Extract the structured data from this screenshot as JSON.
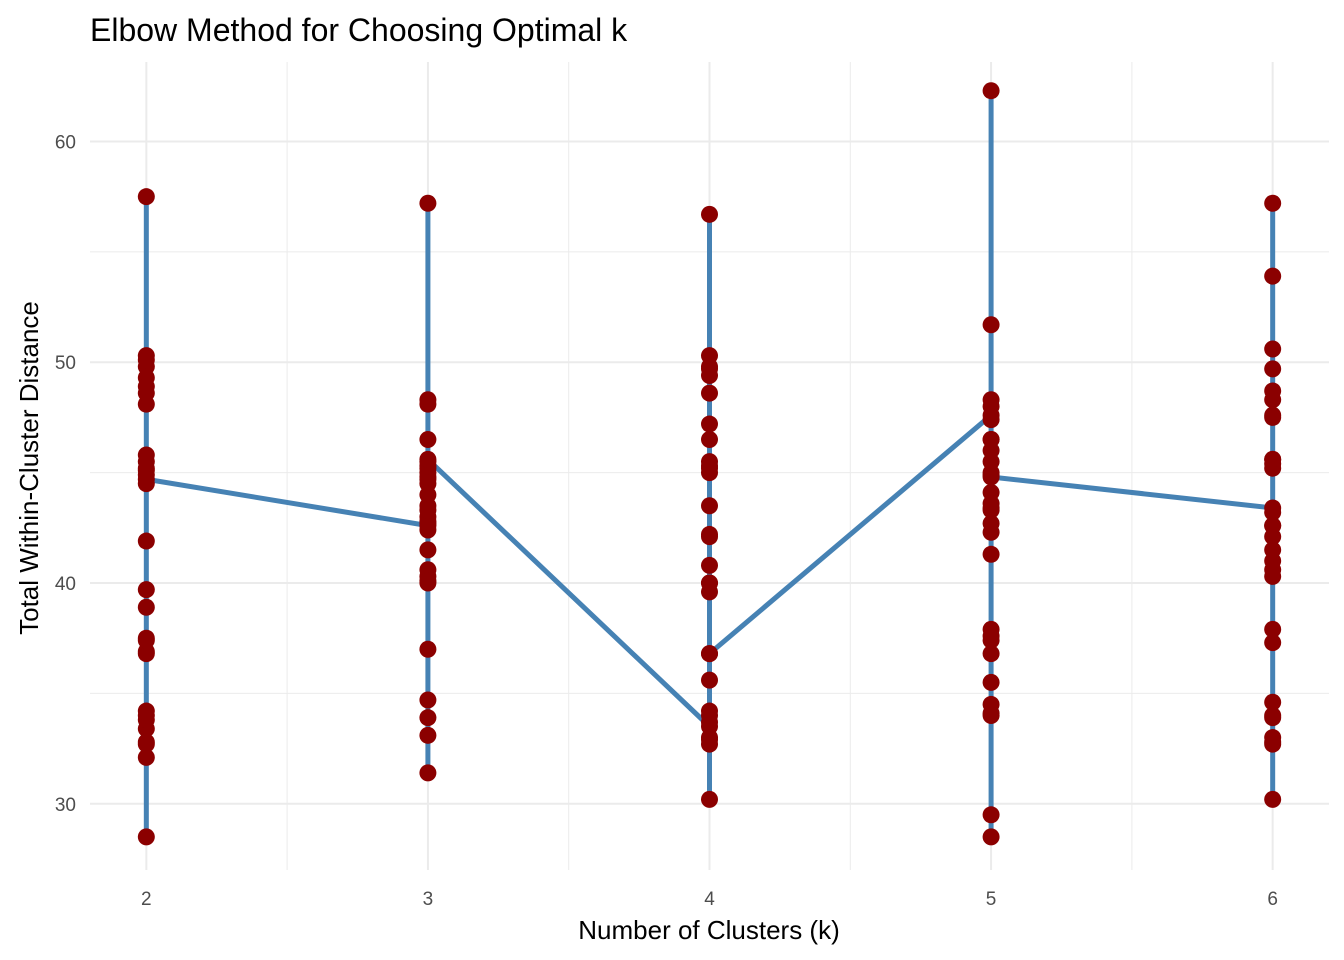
{
  "chart_data": {
    "type": "line",
    "title": "Elbow Method for Choosing Optimal k",
    "xlabel": "Number of Clusters (k)",
    "ylabel": "Total Within-Cluster Distance",
    "x_ticks": [
      "2",
      "3",
      "4",
      "5",
      "6"
    ],
    "y_ticks": [
      "30",
      "40",
      "50",
      "60"
    ],
    "xlim": [
      1.8,
      6.2
    ],
    "ylim": [
      27,
      63.6
    ],
    "grid": true,
    "legend": "none",
    "line_color": "#4682B4",
    "point_color": "#8B0000",
    "x": [
      2,
      2,
      2,
      2,
      2,
      2,
      2,
      2,
      2,
      2,
      2,
      2,
      2,
      2,
      2,
      2,
      2,
      2,
      2,
      2,
      2,
      2,
      2,
      2,
      2,
      2,
      2,
      2,
      2,
      2,
      3,
      3,
      3,
      3,
      3,
      3,
      3,
      3,
      3,
      3,
      3,
      3,
      3,
      3,
      3,
      3,
      3,
      3,
      3,
      3,
      3,
      3,
      3,
      3,
      3,
      3,
      3,
      3,
      3,
      3,
      4,
      4,
      4,
      4,
      4,
      4,
      4,
      4,
      4,
      4,
      4,
      4,
      4,
      4,
      4,
      4,
      4,
      4,
      4,
      4,
      4,
      4,
      4,
      4,
      4,
      4,
      4,
      4,
      4,
      4,
      5,
      5,
      5,
      5,
      5,
      5,
      5,
      5,
      5,
      5,
      5,
      5,
      5,
      5,
      5,
      5,
      5,
      5,
      5,
      5,
      5,
      5,
      5,
      5,
      5,
      5,
      5,
      5,
      5,
      5,
      6,
      6,
      6,
      6,
      6,
      6,
      6,
      6,
      6,
      6,
      6,
      6,
      6,
      6,
      6,
      6,
      6,
      6,
      6,
      6,
      6,
      6,
      6,
      6,
      6,
      6,
      6,
      6,
      6,
      6
    ],
    "y": [
      57.5,
      28.5,
      32.1,
      45.8,
      49.3,
      39.7,
      33.4,
      44.5,
      48.1,
      37.5,
      50.3,
      34.2,
      41.9,
      45.1,
      36.8,
      32.8,
      48.6,
      38.9,
      44.9,
      33.8,
      49.8,
      45.5,
      36.9,
      34.0,
      50.1,
      48.9,
      32.7,
      45.2,
      37.4,
      44.7,
      42.6,
      57.2,
      31.4,
      45.5,
      40.0,
      34.7,
      48.3,
      43.5,
      33.1,
      44.0,
      40.6,
      37.0,
      45.0,
      42.4,
      46.5,
      33.9,
      44.7,
      41.5,
      48.1,
      40.3,
      43.0,
      45.2,
      44.5,
      42.7,
      40.1,
      44.8,
      42.8,
      45.3,
      43.3,
      45.6,
      33.5,
      56.7,
      30.2,
      42.2,
      49.7,
      35.6,
      45.2,
      34.2,
      43.5,
      39.6,
      48.6,
      36.8,
      45.3,
      32.7,
      49.4,
      40.8,
      47.2,
      33.7,
      46.5,
      40.0,
      45.5,
      33.0,
      50.3,
      40.0,
      45.0,
      32.9,
      49.8,
      34.0,
      42.1,
      36.8,
      47.6,
      62.3,
      29.5,
      51.7,
      34.1,
      37.9,
      46.5,
      28.5,
      44.9,
      35.5,
      48.3,
      36.8,
      45.5,
      43.3,
      37.4,
      42.3,
      46.0,
      34.5,
      44.1,
      41.3,
      47.4,
      43.6,
      37.6,
      45.0,
      42.7,
      48.0,
      34.0,
      46.5,
      43.4,
      44.8,
      43.4,
      57.2,
      30.2,
      53.9,
      45.6,
      32.8,
      50.6,
      37.9,
      45.4,
      34.6,
      42.6,
      48.7,
      33.9,
      47.6,
      41.0,
      49.7,
      40.6,
      43.2,
      37.3,
      34.0,
      42.1,
      48.3,
      33.0,
      45.2,
      40.3,
      42.6,
      41.5,
      47.5,
      32.7,
      45.6
    ]
  }
}
